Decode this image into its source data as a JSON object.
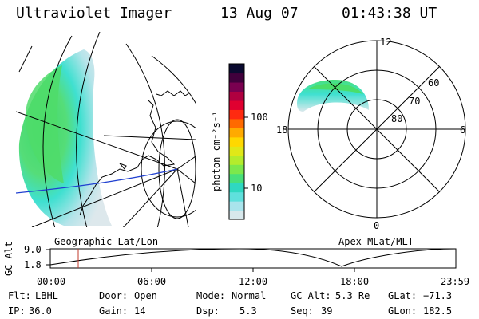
{
  "header": {
    "instrument": "Ultraviolet Imager",
    "date": "13 Aug 07",
    "time": "01:43:38 UT"
  },
  "geo_panel": {
    "label": "Geographic Lat/Lon"
  },
  "polar_panel": {
    "label": "Apex MLat/MLT",
    "mlt_labels": {
      "top": "12",
      "left": "18",
      "right": "6",
      "bottom": "0"
    },
    "lat_labels": [
      "60",
      "70",
      "80"
    ]
  },
  "colorbar": {
    "unit": "photon cm⁻²s⁻¹",
    "tick_labels": [
      "100",
      "10"
    ],
    "colors": [
      "#d8e8ec",
      "#a9e4ec",
      "#5fe0dc",
      "#2fd8c0",
      "#48e07a",
      "#7ce84c",
      "#b4ec2c",
      "#e0e818",
      "#ffd800",
      "#ffaa00",
      "#ff6a00",
      "#ff2a10",
      "#e00030",
      "#b00040",
      "#7a0050",
      "#40003c",
      "#0a0a30"
    ]
  },
  "altitude_plot": {
    "ylabel": "GC Alt",
    "y_ticks": [
      "9.0",
      "1.8"
    ],
    "x_ticks": [
      "00:00",
      "06:00",
      "12:00",
      "18:00",
      "23:59"
    ],
    "marker_color": "#c0392b"
  },
  "info": {
    "flt_label": "Flt:",
    "flt_value": "LBHL",
    "ip_label": "IP:",
    "ip_value": "36.0",
    "door_label": "Door:",
    "door_value": "Open",
    "gain_label": "Gain:",
    "gain_value": "14",
    "mode_label": "Mode:",
    "mode_value": "Normal",
    "dsp_label": "Dsp:",
    "dsp_value": "5.3",
    "gcalt_label": "GC Alt:",
    "gcalt_value": "5.3 Re",
    "seq_label": "Seq:",
    "seq_value": "39",
    "glat_label": "GLat:",
    "glat_value": "−71.3",
    "glon_label": "GLon:",
    "glon_value": "182.5"
  }
}
